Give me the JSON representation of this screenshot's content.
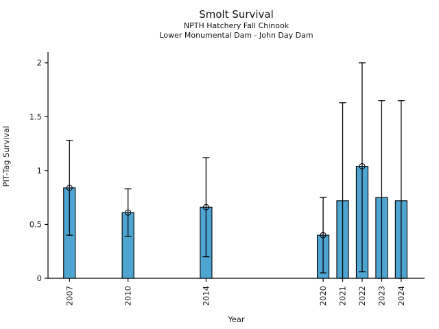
{
  "figure": {
    "title": "Smolt Survival",
    "subtitle_line1": "NPTH Hatchery Fall Chinook",
    "subtitle_line2": "Lower Monumental Dam - John Day Dam"
  },
  "chart_data": {
    "type": "bar",
    "title": "Smolt Survival",
    "subtitle": [
      "NPTH Hatchery Fall Chinook",
      "Lower Monumental Dam - John Day Dam"
    ],
    "xlabel": "Year",
    "ylabel": "PIT-Tag Survival",
    "categories": [
      "2007",
      "2010",
      "2014",
      "2020",
      "2021",
      "2022",
      "2023",
      "2024"
    ],
    "x": [
      2007,
      2010,
      2014,
      2020,
      2021,
      2022,
      2023,
      2024
    ],
    "values": [
      0.84,
      0.61,
      0.66,
      0.4,
      0.72,
      1.04,
      0.75,
      0.72
    ],
    "error_low": [
      0.4,
      0.39,
      0.2,
      0.05,
      0.0,
      0.06,
      0.0,
      0.0
    ],
    "error_high": [
      1.28,
      0.83,
      1.12,
      0.75,
      1.63,
      2.0,
      1.65,
      1.65
    ],
    "open_circle_marker": [
      true,
      true,
      true,
      true,
      false,
      true,
      false,
      false
    ],
    "ytick_labels": [
      "0",
      "0.5",
      "1",
      "1.5",
      "2"
    ],
    "ytick_values": [
      0,
      0.5,
      1,
      1.5,
      2
    ],
    "ylim": [
      0,
      2.1
    ],
    "xlim": [
      2005.9,
      2025.2
    ],
    "bar_width_years": 0.6,
    "bar_color": "#4fa5d2",
    "bar_edge_color": "#000000",
    "error_color": "#000000",
    "grid": false,
    "legend": "none"
  }
}
